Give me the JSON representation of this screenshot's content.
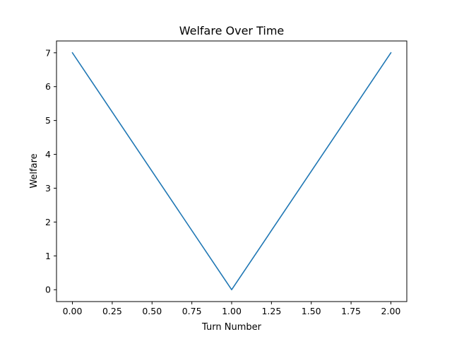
{
  "chart_data": {
    "type": "line",
    "title": "Welfare Over Time",
    "xlabel": "Turn Number",
    "ylabel": "Welfare",
    "xlim": [
      -0.1,
      2.1
    ],
    "ylim": [
      -0.35,
      7.35
    ],
    "xticks": [
      0.0,
      0.25,
      0.5,
      0.75,
      1.0,
      1.25,
      1.5,
      1.75,
      2.0
    ],
    "xtick_labels": [
      "0.00",
      "0.25",
      "0.50",
      "0.75",
      "1.00",
      "1.25",
      "1.50",
      "1.75",
      "2.00"
    ],
    "yticks": [
      0,
      1,
      2,
      3,
      4,
      5,
      6,
      7
    ],
    "ytick_labels": [
      "0",
      "1",
      "2",
      "3",
      "4",
      "5",
      "6",
      "7"
    ],
    "grid": false,
    "series": [
      {
        "x": [
          0,
          1,
          2
        ],
        "y": [
          7,
          0,
          7
        ],
        "color": "#1f77b4"
      }
    ]
  }
}
